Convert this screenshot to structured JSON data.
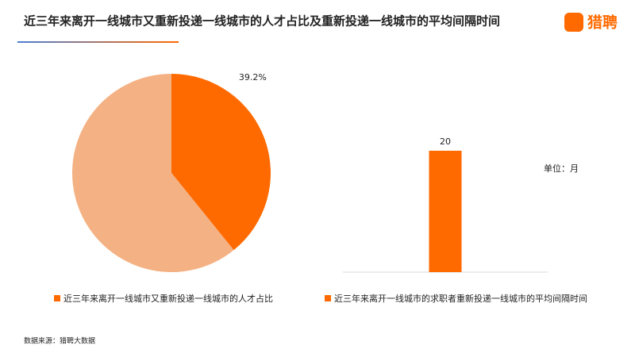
{
  "header": {
    "title": "近三年来离开一线城市又重新投递一线城市的人才占比及重新投递一线城市的平均间隔时间",
    "logo": "猎聘"
  },
  "chart_data": [
    {
      "type": "pie",
      "categories": [
        "近三年来离开一线城市又重新投递一线城市的人才占比",
        null
      ],
      "values": [
        39.2,
        60.8
      ],
      "value_labels": [
        "39.2%",
        null
      ],
      "colors": [
        "#ff6a00",
        "#f4b183"
      ]
    },
    {
      "type": "bar",
      "categories": [
        null
      ],
      "series": [
        {
          "name": "近三年来离开一线城市的求职者重新投递一线城市的平均间隔时间",
          "color": "#ff6a00",
          "values": [
            20
          ]
        }
      ],
      "unit": "单位：月"
    }
  ],
  "footer": {
    "source": "数据来源：猎聘大数据"
  }
}
